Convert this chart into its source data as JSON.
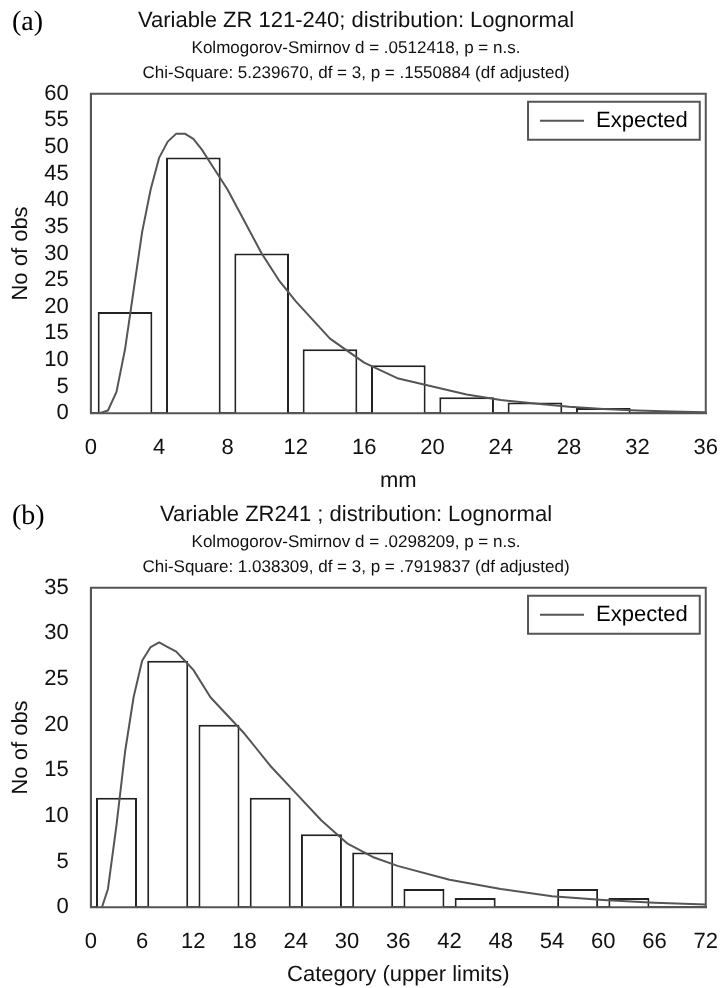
{
  "chart_data": [
    {
      "type": "histogram",
      "title": "Variable ZR 121-240; distribution: Lognormal",
      "subtitle": "Kolmogorov-Smirnov d = .0512418, p = n.s.",
      "annotations": [
        "(a)",
        "Chi-Square: 5.239670, df = 3, p = .1550884 (df adjusted)"
      ],
      "xlabel": "mm",
      "ylabel": "No of obs",
      "bins": [
        0,
        4,
        8,
        12,
        16,
        20,
        24,
        28,
        32,
        36
      ],
      "values": [
        19,
        48,
        30,
        12,
        9,
        3,
        2,
        1,
        0
      ],
      "color": "#ffffff",
      "xlim": [
        0,
        36
      ],
      "xticks": [
        0,
        4,
        8,
        12,
        16,
        20,
        24,
        28,
        32,
        36
      ],
      "ylim": [
        0,
        60
      ],
      "yticks": [
        0,
        5,
        10,
        15,
        20,
        25,
        30,
        35,
        40,
        45,
        50,
        55,
        60
      ],
      "grid": false,
      "legend": "top right",
      "series": [
        {
          "name": "Expected",
          "type": "line",
          "color": "#555555",
          "x": [
            0.5,
            1,
            1.5,
            2,
            2.5,
            3,
            3.5,
            4,
            4.5,
            5,
            5.5,
            6,
            6.5,
            7,
            8,
            9,
            10,
            11,
            12,
            14,
            16,
            18,
            20,
            22,
            24,
            26,
            28,
            30,
            32,
            34,
            36
          ],
          "values": [
            0,
            0.5,
            4,
            12,
            23,
            34,
            42,
            48,
            51,
            52.5,
            52.5,
            51.5,
            49.5,
            47,
            42,
            36,
            30,
            25,
            21,
            14,
            9.5,
            6.5,
            5,
            3.5,
            2.5,
            1.8,
            1.2,
            0.8,
            0.5,
            0.3,
            0.2
          ]
        }
      ]
    },
    {
      "type": "histogram",
      "title": "Variable ZR241 ; distribution: Lognormal",
      "subtitle": "Kolmogorov-Smirnov d = .0298209, p = n.s.",
      "annotations": [
        "(b)",
        "Chi-Square: 1.038309, df = 3, p = .7919837 (df adjusted)"
      ],
      "xlabel": "Category (upper limits)",
      "ylabel": "No of obs",
      "bins": [
        0,
        6,
        12,
        18,
        24,
        30,
        36,
        42,
        48,
        54,
        60,
        66,
        72
      ],
      "values": [
        12,
        27,
        20,
        12,
        8,
        6,
        2,
        1,
        0,
        2,
        1,
        0
      ],
      "color": "#ffffff",
      "xlim": [
        0,
        72
      ],
      "xticks": [
        0,
        6,
        12,
        18,
        24,
        30,
        36,
        42,
        48,
        54,
        60,
        66,
        72
      ],
      "ylim": [
        0,
        35
      ],
      "yticks": [
        0,
        5,
        10,
        15,
        20,
        25,
        30,
        35
      ],
      "grid": false,
      "legend": "top right",
      "series": [
        {
          "name": "Expected",
          "type": "line",
          "color": "#555555",
          "x": [
            1.3,
            2,
            3,
            4,
            5,
            6,
            7,
            8,
            9,
            10,
            11,
            12,
            14,
            16,
            18,
            21,
            24,
            27,
            30,
            33,
            36,
            42,
            48,
            54,
            60,
            66,
            72
          ],
          "values": [
            0,
            2,
            9,
            17,
            23,
            27,
            28.5,
            29,
            28.5,
            28,
            27,
            26,
            23,
            21,
            19,
            15.5,
            12.5,
            9.5,
            7,
            5.5,
            4.5,
            3,
            2,
            1.2,
            0.8,
            0.5,
            0.3
          ]
        }
      ]
    }
  ]
}
